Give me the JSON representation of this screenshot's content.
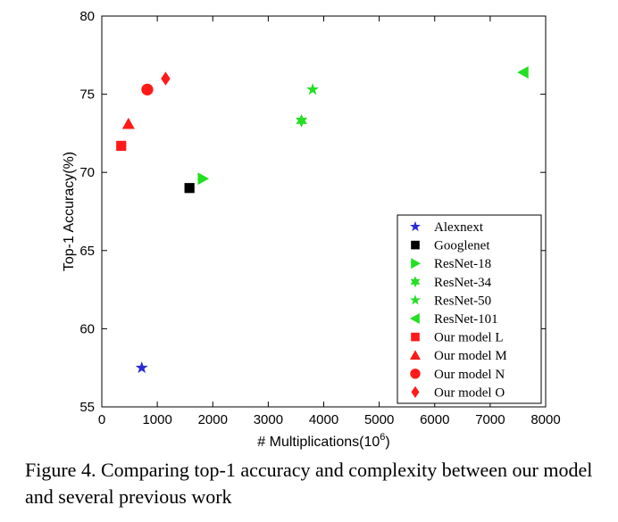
{
  "chart_data": {
    "type": "scatter",
    "xlabel": "# Multiplications(10",
    "xlabel_sup": "6",
    "xlabel_tail": ")",
    "ylabel": "Top-1 Accuracy(%)",
    "xlim": [
      0,
      8000
    ],
    "ylim": [
      55,
      80
    ],
    "x_ticks": [
      0,
      1000,
      2000,
      3000,
      4000,
      5000,
      6000,
      7000,
      8000
    ],
    "y_ticks": [
      55,
      60,
      65,
      70,
      75,
      80
    ],
    "grid": false,
    "legend_position": "bottom-right",
    "series": [
      {
        "name": "Alexnext",
        "marker": "star",
        "color": "#2b2bd6",
        "points": [
          [
            720,
            57.5
          ]
        ]
      },
      {
        "name": "Googlenet",
        "marker": "square",
        "color": "#000000",
        "points": [
          [
            1580,
            69.0
          ]
        ]
      },
      {
        "name": "ResNet-18",
        "marker": "triangle-right",
        "color": "#22e022",
        "points": [
          [
            1820,
            69.6
          ]
        ]
      },
      {
        "name": "ResNet-34",
        "marker": "hexagram",
        "color": "#22e022",
        "points": [
          [
            3600,
            73.3
          ]
        ]
      },
      {
        "name": "ResNet-50",
        "marker": "star",
        "color": "#22e022",
        "points": [
          [
            3800,
            75.3
          ]
        ]
      },
      {
        "name": "ResNet-101",
        "marker": "triangle-left",
        "color": "#22e022",
        "points": [
          [
            7600,
            76.4
          ]
        ]
      },
      {
        "name": "Our model L",
        "marker": "square",
        "color": "#ff1a1a",
        "points": [
          [
            350,
            71.7
          ]
        ]
      },
      {
        "name": "Our model M",
        "marker": "triangle-up",
        "color": "#ff1a1a",
        "points": [
          [
            480,
            73.1
          ]
        ]
      },
      {
        "name": "Our model N",
        "marker": "circle",
        "color": "#ff1a1a",
        "points": [
          [
            820,
            75.3
          ]
        ]
      },
      {
        "name": "Our model O",
        "marker": "diamond",
        "color": "#ff1a1a",
        "points": [
          [
            1150,
            76.0
          ]
        ]
      }
    ]
  },
  "caption": "Figure 4. Comparing top-1 accuracy and complexity between our model and several previous work"
}
